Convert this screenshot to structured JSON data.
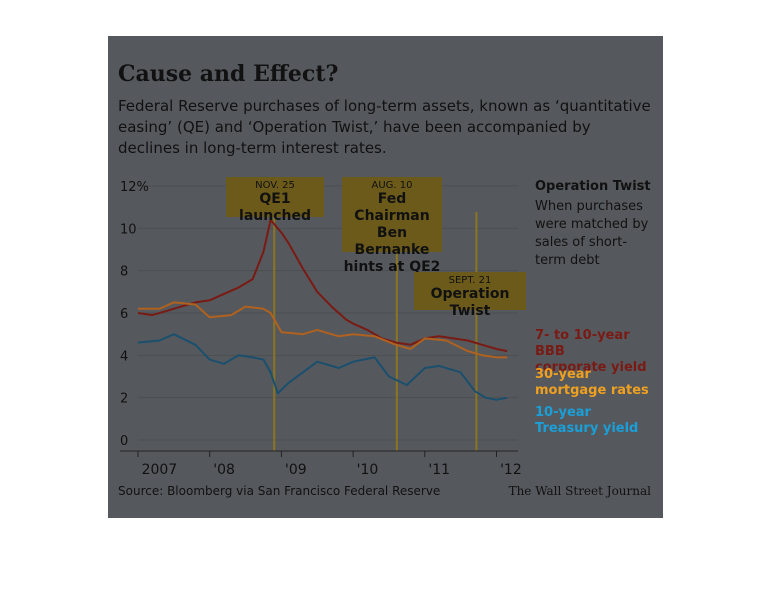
{
  "header": {
    "title": "Cause and Effect?",
    "subtitle": "Federal Reserve purchases of long-term assets, known as ‘quantitative easing’ (QE) and ‘Operation Twist,’ have been accompanied by declines in long-term interest rates."
  },
  "annotations": [
    {
      "date": "NOV. 25",
      "text_lines": [
        "QE1 launched"
      ],
      "x_value": 2008.9
    },
    {
      "date": "AUG. 10",
      "text_lines": [
        "Fed Chairman",
        "Ben Bernanke",
        "hints at QE2"
      ],
      "x_value": 2010.61
    },
    {
      "date": "SEPT. 21",
      "text_lines": [
        "Operation Twist"
      ],
      "x_value": 2011.72
    }
  ],
  "operation_twist_note": {
    "title": "Operation Twist",
    "body": "When purchases were matched by sales of short-term debt"
  },
  "legend": [
    {
      "label_lines": [
        "7- to 10-year BBB",
        "corporate yield"
      ],
      "color": "#7a1a14"
    },
    {
      "label_lines": [
        "30-year",
        "mortgage rates"
      ],
      "color": "#f0a020"
    },
    {
      "label_lines": [
        "10-year",
        "Treasury yield"
      ],
      "color": "#1a9fd8"
    }
  ],
  "source": "Source: Bloomberg via San Francisco Federal Reserve",
  "credit": "The Wall Street Journal",
  "colors": {
    "background": "#55595d",
    "annotation_box": "#6b5a1a",
    "annotation_line": "#8c7420",
    "corporate": "#7a1a14",
    "mortgage": "#b0611f",
    "treasury": "#1a4f6e",
    "highlight": "#f2e000"
  },
  "chart_data": {
    "type": "line",
    "ylabel": "",
    "y_ticks": [
      "12%",
      "10",
      "8",
      "6",
      "4",
      "2",
      "0"
    ],
    "x_ticks": [
      "2007",
      "'08",
      "'09",
      "'10",
      "'11",
      "'12"
    ],
    "ylim": [
      0,
      12
    ],
    "xlim": [
      2007,
      2012.3
    ],
    "series": [
      {
        "name": "7- to 10-year BBB corporate yield",
        "x": [
          2007.0,
          2007.2,
          2007.4,
          2007.6,
          2007.8,
          2008.0,
          2008.2,
          2008.4,
          2008.6,
          2008.75,
          2008.85,
          2008.9,
          2009.0,
          2009.1,
          2009.3,
          2009.5,
          2009.7,
          2009.9,
          2010.0,
          2010.2,
          2010.4,
          2010.6,
          2010.8,
          2011.0,
          2011.2,
          2011.4,
          2011.6,
          2011.8,
          2012.0,
          2012.15
        ],
        "y": [
          6.0,
          5.9,
          6.1,
          6.3,
          6.5,
          6.6,
          6.9,
          7.2,
          7.6,
          8.9,
          10.4,
          10.2,
          9.8,
          9.3,
          8.1,
          7.0,
          6.3,
          5.7,
          5.5,
          5.2,
          4.8,
          4.6,
          4.5,
          4.8,
          4.9,
          4.8,
          4.7,
          4.5,
          4.3,
          4.2
        ]
      },
      {
        "name": "30-year mortgage rates",
        "x": [
          2007.0,
          2007.3,
          2007.5,
          2007.8,
          2008.0,
          2008.3,
          2008.5,
          2008.75,
          2008.85,
          2009.0,
          2009.3,
          2009.5,
          2009.8,
          2010.0,
          2010.3,
          2010.6,
          2010.8,
          2011.0,
          2011.3,
          2011.6,
          2011.8,
          2012.0,
          2012.15
        ],
        "y": [
          6.2,
          6.2,
          6.5,
          6.4,
          5.8,
          5.9,
          6.3,
          6.2,
          6.0,
          5.1,
          5.0,
          5.2,
          4.9,
          5.0,
          4.9,
          4.5,
          4.3,
          4.8,
          4.7,
          4.2,
          4.0,
          3.9,
          3.9
        ]
      },
      {
        "name": "10-year Treasury yield",
        "x": [
          2007.0,
          2007.3,
          2007.5,
          2007.8,
          2008.0,
          2008.2,
          2008.4,
          2008.6,
          2008.75,
          2008.85,
          2008.95,
          2009.1,
          2009.3,
          2009.5,
          2009.8,
          2010.0,
          2010.3,
          2010.5,
          2010.75,
          2011.0,
          2011.2,
          2011.5,
          2011.7,
          2011.85,
          2012.0,
          2012.15
        ],
        "y": [
          4.6,
          4.7,
          5.0,
          4.5,
          3.8,
          3.6,
          4.0,
          3.9,
          3.8,
          3.2,
          2.2,
          2.7,
          3.2,
          3.7,
          3.4,
          3.7,
          3.9,
          3.0,
          2.6,
          3.4,
          3.5,
          3.2,
          2.3,
          2.0,
          1.9,
          2.0
        ]
      }
    ]
  }
}
